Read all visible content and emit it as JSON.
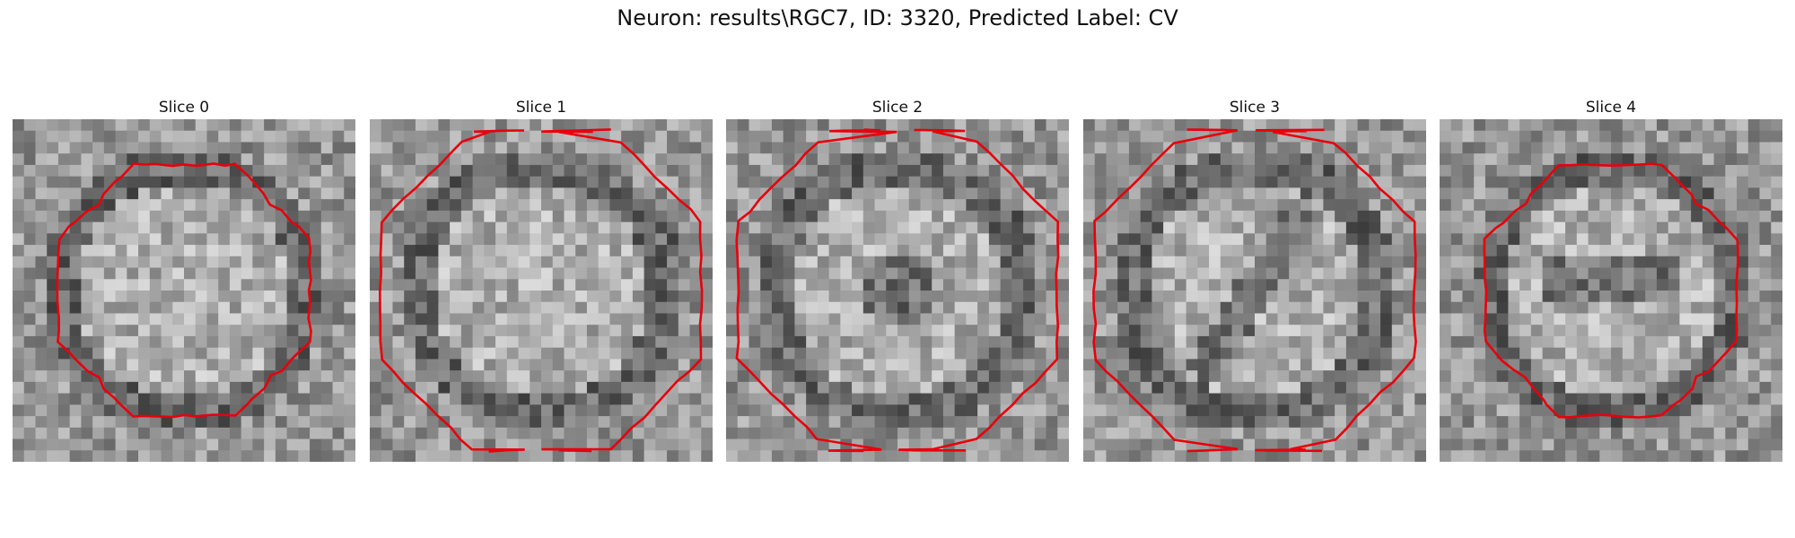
{
  "figure": {
    "title": "Neuron: results\\RGC7, ID: 3320, Predicted Label: CV"
  },
  "slices": [
    {
      "title": "Slice 0",
      "texture": 1,
      "outline_style": "closed"
    },
    {
      "title": "Slice 1",
      "texture": 2,
      "outline_style": "cut-top-bottom"
    },
    {
      "title": "Slice 2",
      "texture": 3,
      "outline_style": "cut-top-bottom"
    },
    {
      "title": "Slice 3",
      "texture": 4,
      "outline_style": "cut-top-bottom"
    },
    {
      "title": "Slice 4",
      "texture": 5,
      "outline_style": "closed"
    }
  ],
  "colors": {
    "contour": "#e8000b",
    "background": "#ffffff"
  }
}
